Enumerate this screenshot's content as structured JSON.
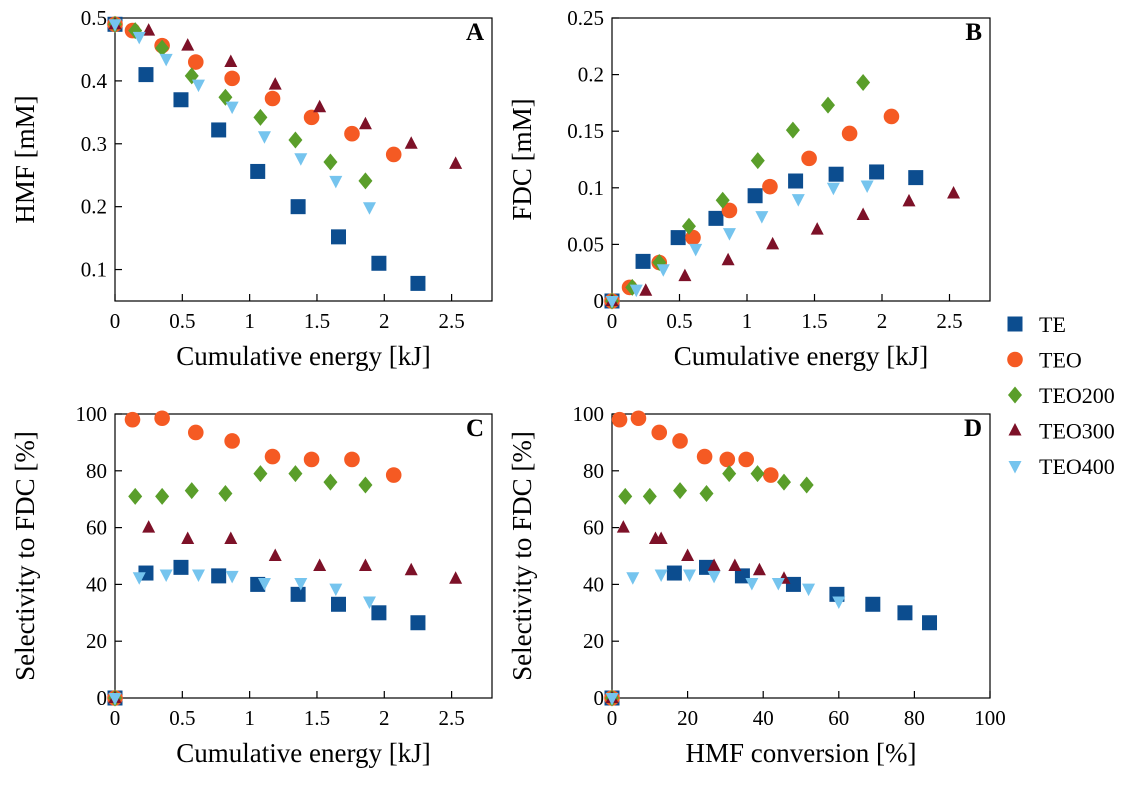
{
  "series_styles": [
    {
      "name": "TE",
      "marker": "square",
      "color": "#0c4d8f"
    },
    {
      "name": "TEO",
      "marker": "circle",
      "color": "#f55a23"
    },
    {
      "name": "TEO200",
      "marker": "diamond",
      "color": "#5a9e2a"
    },
    {
      "name": "TEO300",
      "marker": "triangle-up",
      "color": "#7d1128"
    },
    {
      "name": "TEO400",
      "marker": "triangle-down",
      "color": "#75c4ee"
    }
  ],
  "legend": {
    "placement": "right-center"
  },
  "chart_data": [
    {
      "type": "scatter",
      "panel": "A",
      "xlabel": "Cumulative energy [kJ]",
      "ylabel": "HMF [mM]",
      "xlim": [
        0,
        2.8
      ],
      "ylim": [
        0.05,
        0.5
      ],
      "xticks": [
        0,
        0.5,
        1,
        1.5,
        2,
        2.5
      ],
      "xtick_labels": [
        "0",
        "0.5",
        "1",
        "1.5",
        "2",
        "2.5"
      ],
      "yticks": [
        0.1,
        0.2,
        0.3,
        0.4,
        0.5
      ],
      "ytick_labels": [
        "0.1",
        "0.2",
        "0.3",
        "0.4",
        "0.5"
      ],
      "grid": false,
      "series": [
        {
          "name": "TE",
          "x": [
            0,
            0.23,
            0.49,
            0.77,
            1.06,
            1.36,
            1.66,
            1.96,
            2.25
          ],
          "y": [
            0.49,
            0.41,
            0.37,
            0.322,
            0.256,
            0.2,
            0.152,
            0.11,
            0.078
          ]
        },
        {
          "name": "TEO",
          "x": [
            0,
            0.13,
            0.35,
            0.6,
            0.87,
            1.17,
            1.46,
            1.76,
            2.07
          ],
          "y": [
            0.49,
            0.48,
            0.456,
            0.43,
            0.404,
            0.372,
            0.342,
            0.316,
            0.283
          ]
        },
        {
          "name": "TEO200",
          "x": [
            0,
            0.15,
            0.35,
            0.57,
            0.82,
            1.08,
            1.34,
            1.6,
            1.86
          ],
          "y": [
            0.49,
            0.48,
            0.452,
            0.408,
            0.374,
            0.342,
            0.306,
            0.271,
            0.241
          ]
        },
        {
          "name": "TEO300",
          "x": [
            0,
            0.25,
            0.54,
            0.86,
            1.19,
            1.52,
            1.86,
            2.2,
            2.53
          ],
          "y": [
            0.49,
            0.48,
            0.456,
            0.43,
            0.394,
            0.358,
            0.331,
            0.3,
            0.268
          ]
        },
        {
          "name": "TEO400",
          "x": [
            0,
            0.18,
            0.38,
            0.62,
            0.87,
            1.11,
            1.38,
            1.64,
            1.89
          ],
          "y": [
            0.49,
            0.47,
            0.435,
            0.394,
            0.359,
            0.312,
            0.277,
            0.241,
            0.199
          ]
        }
      ]
    },
    {
      "type": "scatter",
      "panel": "B",
      "xlabel": "Cumulative energy [kJ]",
      "ylabel": "FDC [mM]",
      "xlim": [
        0,
        2.8
      ],
      "ylim": [
        0,
        0.25
      ],
      "xticks": [
        0,
        0.5,
        1,
        1.5,
        2,
        2.5
      ],
      "xtick_labels": [
        "0",
        "0.5",
        "1",
        "1.5",
        "2",
        "2.5"
      ],
      "yticks": [
        0,
        0.05,
        0.1,
        0.15,
        0.2,
        0.25
      ],
      "ytick_labels": [
        "0",
        "0.05",
        "0.1",
        "0.15",
        "0.2",
        "0.25"
      ],
      "grid": false,
      "series": [
        {
          "name": "TE",
          "x": [
            0,
            0.23,
            0.49,
            0.77,
            1.06,
            1.36,
            1.66,
            1.96,
            2.25
          ],
          "y": [
            0,
            0.035,
            0.056,
            0.073,
            0.093,
            0.106,
            0.112,
            0.114,
            0.109
          ]
        },
        {
          "name": "TEO",
          "x": [
            0,
            0.13,
            0.35,
            0.6,
            0.87,
            1.17,
            1.46,
            1.76,
            2.07
          ],
          "y": [
            0,
            0.012,
            0.034,
            0.056,
            0.08,
            0.101,
            0.126,
            0.148,
            0.163
          ]
        },
        {
          "name": "TEO200",
          "x": [
            0,
            0.15,
            0.35,
            0.57,
            0.82,
            1.08,
            1.34,
            1.6,
            1.86
          ],
          "y": [
            0,
            0.012,
            0.034,
            0.066,
            0.089,
            0.124,
            0.151,
            0.173,
            0.193
          ]
        },
        {
          "name": "TEO300",
          "x": [
            0,
            0.25,
            0.54,
            0.86,
            1.19,
            1.52,
            1.86,
            2.2,
            2.53
          ],
          "y": [
            0,
            0.009,
            0.022,
            0.036,
            0.05,
            0.063,
            0.076,
            0.088,
            0.095
          ]
        },
        {
          "name": "TEO400",
          "x": [
            0,
            0.18,
            0.38,
            0.62,
            0.87,
            1.11,
            1.38,
            1.64,
            1.89
          ],
          "y": [
            0,
            0.01,
            0.028,
            0.046,
            0.06,
            0.075,
            0.09,
            0.1,
            0.102
          ]
        }
      ]
    },
    {
      "type": "scatter",
      "panel": "C",
      "xlabel": "Cumulative energy [kJ]",
      "ylabel": "Selectivity to FDC [%]",
      "xlim": [
        0,
        2.8
      ],
      "ylim": [
        0,
        100
      ],
      "xticks": [
        0,
        0.5,
        1,
        1.5,
        2,
        2.5
      ],
      "xtick_labels": [
        "0",
        "0.5",
        "1",
        "1.5",
        "2",
        "2.5"
      ],
      "yticks": [
        0,
        20,
        40,
        60,
        80,
        100
      ],
      "ytick_labels": [
        "0",
        "20",
        "40",
        "60",
        "80",
        "100"
      ],
      "grid": false,
      "series": [
        {
          "name": "TE",
          "x": [
            0,
            0.23,
            0.49,
            0.77,
            1.06,
            1.36,
            1.66,
            1.96,
            2.25
          ],
          "y": [
            0,
            44,
            46,
            43,
            40,
            36.5,
            33,
            30,
            26.5
          ]
        },
        {
          "name": "TEO",
          "x": [
            0,
            0.13,
            0.35,
            0.6,
            0.87,
            1.17,
            1.46,
            1.76,
            2.07
          ],
          "y": [
            0,
            98,
            98.5,
            93.5,
            90.5,
            85,
            84,
            84,
            78.5
          ]
        },
        {
          "name": "TEO200",
          "x": [
            0,
            0.15,
            0.35,
            0.57,
            0.82,
            1.08,
            1.34,
            1.6,
            1.86
          ],
          "y": [
            0,
            71,
            71,
            73,
            72,
            79,
            79,
            76,
            75
          ]
        },
        {
          "name": "TEO300",
          "x": [
            0,
            0.25,
            0.54,
            0.86,
            1.19,
            1.52,
            1.86,
            2.2,
            2.53
          ],
          "y": [
            0,
            60,
            56,
            56,
            50,
            46.5,
            46.5,
            45,
            42
          ]
        },
        {
          "name": "TEO400",
          "x": [
            0,
            0.18,
            0.38,
            0.62,
            0.87,
            1.11,
            1.38,
            1.64,
            1.89
          ],
          "y": [
            0,
            42.5,
            43.5,
            43.5,
            43,
            40.5,
            40.5,
            38.5,
            34
          ]
        }
      ]
    },
    {
      "type": "scatter",
      "panel": "D",
      "xlabel": "HMF conversion [%]",
      "ylabel": "Selectivity to FDC [%]",
      "xlim": [
        0,
        100
      ],
      "ylim": [
        0,
        100
      ],
      "xticks": [
        0,
        20,
        40,
        60,
        80,
        100
      ],
      "xtick_labels": [
        "0",
        "20",
        "40",
        "60",
        "80",
        "100"
      ],
      "yticks": [
        0,
        20,
        40,
        60,
        80,
        100
      ],
      "ytick_labels": [
        "0",
        "20",
        "40",
        "60",
        "80",
        "100"
      ],
      "grid": false,
      "series": [
        {
          "name": "TE",
          "x": [
            0,
            16.5,
            25,
            34.5,
            48,
            59.5,
            69,
            77.5,
            84
          ],
          "y": [
            0,
            44,
            46,
            43,
            40,
            36.5,
            33,
            30,
            26.5
          ]
        },
        {
          "name": "TEO",
          "x": [
            0,
            2,
            7,
            12.5,
            18,
            24.5,
            30.5,
            35.5,
            42
          ],
          "y": [
            0,
            98,
            98.5,
            93.5,
            90.5,
            85,
            84,
            84,
            78.5
          ]
        },
        {
          "name": "TEO200",
          "x": [
            0,
            3.5,
            10,
            18,
            25,
            31,
            38.5,
            45.5,
            51.5
          ],
          "y": [
            0,
            71,
            71,
            73,
            72,
            79,
            79,
            76,
            75
          ]
        },
        {
          "name": "TEO300",
          "x": [
            0,
            3,
            11.5,
            13,
            20,
            27,
            32.5,
            39,
            45.5
          ],
          "y": [
            0,
            60,
            56,
            56,
            50,
            46.5,
            46.5,
            45,
            42
          ]
        },
        {
          "name": "TEO400",
          "x": [
            0,
            5.5,
            13,
            20.5,
            27,
            37,
            44,
            52,
            60
          ],
          "y": [
            0,
            42.5,
            43.5,
            43.5,
            43,
            40.5,
            40.5,
            38.5,
            34
          ]
        }
      ]
    }
  ]
}
